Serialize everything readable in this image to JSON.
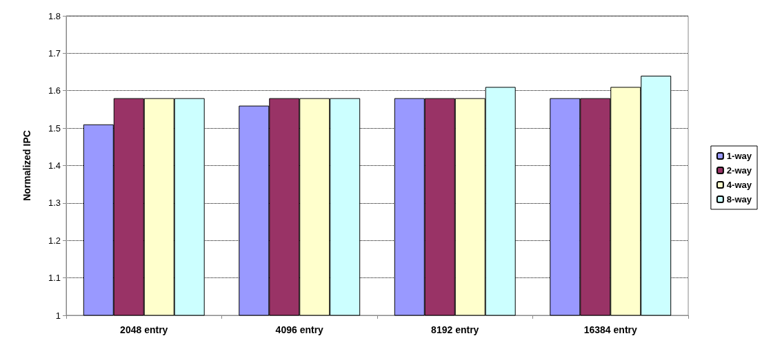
{
  "chart_data": {
    "type": "bar",
    "ylabel": "Normalized IPC",
    "categories": [
      "2048 entry",
      "4096 entry",
      "8192 entry",
      "16384 entry"
    ],
    "series": [
      {
        "name": "1-way",
        "color": "#9999ff",
        "values": [
          1.51,
          1.56,
          1.58,
          1.58
        ]
      },
      {
        "name": "2-way",
        "color": "#993366",
        "values": [
          1.58,
          1.58,
          1.58,
          1.58
        ]
      },
      {
        "name": "4-way",
        "color": "#ffffcc",
        "values": [
          1.58,
          1.58,
          1.58,
          1.61
        ]
      },
      {
        "name": "8-way",
        "color": "#ccffff",
        "values": [
          1.58,
          1.58,
          1.61,
          1.64
        ]
      }
    ],
    "ylim": [
      1,
      1.8
    ],
    "yticks": [
      1,
      1.1,
      1.2,
      1.3,
      1.4,
      1.5,
      1.6,
      1.7,
      1.8
    ],
    "grid": "y",
    "legend": "right"
  }
}
